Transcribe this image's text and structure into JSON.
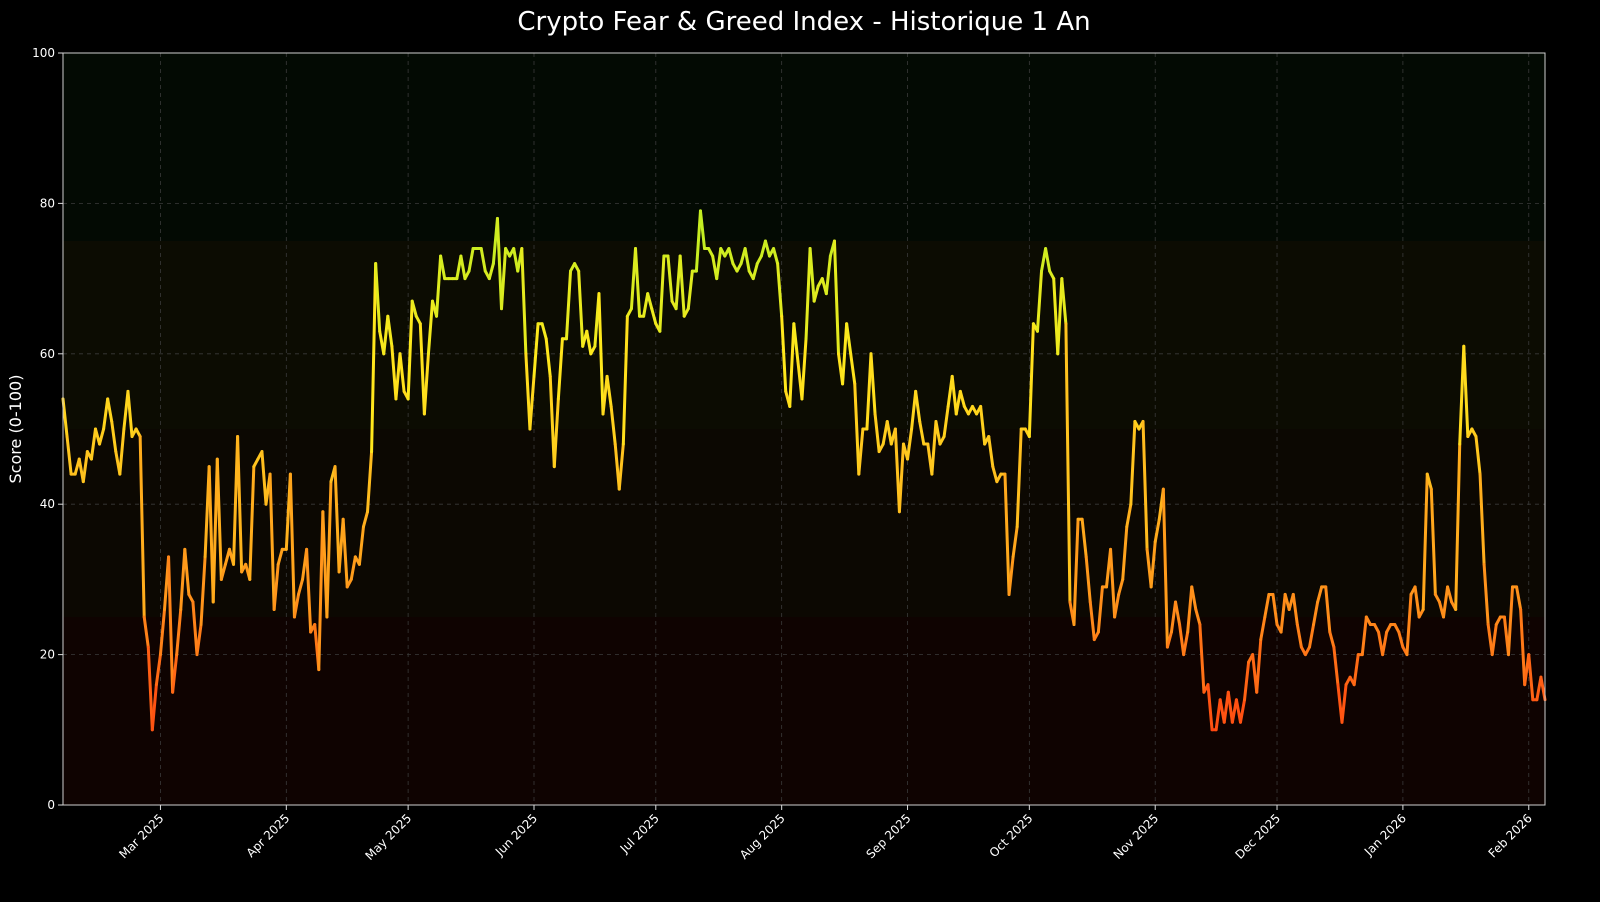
{
  "chart_data": {
    "type": "line",
    "title": "Crypto Fear & Greed Index - Historique 1 An",
    "xlabel": "",
    "ylabel": "Score (0-100)",
    "ylim": [
      0,
      100
    ],
    "xlim": [
      "2025-02-05",
      "2026-02-05"
    ],
    "yticks": [
      "0",
      "20",
      "40",
      "60",
      "80",
      "100"
    ],
    "xticks": [
      {
        "date": "2025-03-01",
        "label": "Mar 2025"
      },
      {
        "date": "2025-04-01",
        "label": "Apr 2025"
      },
      {
        "date": "2025-05-01",
        "label": "May 2025"
      },
      {
        "date": "2025-06-01",
        "label": "Jun 2025"
      },
      {
        "date": "2025-07-01",
        "label": "Jul 2025"
      },
      {
        "date": "2025-08-01",
        "label": "Aug 2025"
      },
      {
        "date": "2025-09-01",
        "label": "Sep 2025"
      },
      {
        "date": "2025-10-01",
        "label": "Oct 2025"
      },
      {
        "date": "2025-11-01",
        "label": "Nov 2025"
      },
      {
        "date": "2025-12-01",
        "label": "Dec 2025"
      },
      {
        "date": "2026-01-01",
        "label": "Jan 2026"
      },
      {
        "date": "2026-02-01",
        "label": "Feb 2026"
      }
    ],
    "grid": true,
    "background_zones": [
      {
        "from": 0,
        "to": 25,
        "color": "#0f0301"
      },
      {
        "from": 25,
        "to": 50,
        "color": "#0c0802"
      },
      {
        "from": 50,
        "to": 75,
        "color": "#0c0c02"
      },
      {
        "from": 75,
        "to": 100,
        "color": "#030a03"
      }
    ],
    "line_colormap": [
      {
        "value": 10,
        "color": "#ff4510"
      },
      {
        "value": 25,
        "color": "#ff8a1a"
      },
      {
        "value": 45,
        "color": "#ffc21e"
      },
      {
        "value": 60,
        "color": "#ffe81c"
      },
      {
        "value": 78,
        "color": "#bdee22"
      }
    ],
    "daily_values": [
      {
        "month": "2025-02",
        "first_day": 5,
        "values": [
          54,
          49,
          44,
          44,
          46,
          43,
          47,
          46,
          50,
          48,
          50,
          54,
          51,
          47,
          44,
          50,
          55,
          49,
          50,
          49,
          25,
          21,
          10,
          16
        ]
      },
      {
        "month": "2025-03",
        "first_day": 1,
        "values": [
          20,
          26,
          33,
          15,
          20,
          26,
          34,
          28,
          27,
          20,
          24,
          33,
          45,
          27,
          46,
          30,
          32,
          34,
          32,
          49,
          31,
          32,
          30,
          45,
          46,
          47,
          40,
          44,
          26,
          32,
          34
        ]
      },
      {
        "month": "2025-04",
        "first_day": 1,
        "values": [
          34,
          44,
          25,
          28,
          30,
          34,
          23,
          24,
          18,
          39,
          25,
          43,
          45,
          31,
          38,
          29,
          30,
          33,
          32,
          37,
          39,
          47,
          72,
          63,
          60,
          65,
          61,
          54,
          60,
          55
        ]
      },
      {
        "month": "2025-05",
        "first_day": 1,
        "values": [
          54,
          67,
          65,
          64,
          52,
          60,
          67,
          65,
          73,
          70,
          70,
          70,
          70,
          73,
          70,
          71,
          74,
          74,
          74,
          71,
          70,
          72,
          78,
          66,
          74,
          73,
          74,
          71,
          74,
          60,
          50
        ]
      },
      {
        "month": "2025-06",
        "first_day": 1,
        "values": [
          57,
          64,
          64,
          62,
          57,
          45,
          54,
          62,
          62,
          71,
          72,
          71,
          61,
          63,
          60,
          61,
          68,
          52,
          57,
          53,
          48,
          42,
          48,
          65,
          66,
          74,
          65,
          65,
          68,
          66
        ]
      },
      {
        "month": "2025-07",
        "first_day": 1,
        "values": [
          64,
          63,
          73,
          73,
          67,
          66,
          73,
          65,
          66,
          71,
          71,
          79,
          74,
          74,
          73,
          70,
          74,
          73,
          74,
          72,
          71,
          72,
          74,
          71,
          70,
          72,
          73,
          75,
          73,
          74,
          72
        ]
      },
      {
        "month": "2025-08",
        "first_day": 1,
        "values": [
          65,
          55,
          53,
          64,
          59,
          54,
          62,
          74,
          67,
          69,
          70,
          68,
          73,
          75,
          60,
          56,
          64,
          60,
          56,
          44,
          50,
          50,
          60,
          52,
          47,
          48,
          51,
          48,
          50,
          39,
          48
        ]
      },
      {
        "month": "2025-09",
        "first_day": 1,
        "values": [
          46,
          50,
          55,
          51,
          48,
          48,
          44,
          51,
          48,
          49,
          53,
          57,
          52,
          55,
          53,
          52,
          53,
          52,
          53,
          48,
          49,
          45,
          43,
          44,
          44,
          28,
          33,
          37,
          50,
          50
        ]
      },
      {
        "month": "2025-10",
        "first_day": 1,
        "values": [
          49,
          64,
          63,
          71,
          74,
          71,
          70,
          60,
          70,
          64,
          27,
          24,
          38,
          38,
          33,
          27,
          22,
          23,
          29,
          29,
          34,
          25,
          28,
          30,
          37,
          40,
          51,
          50,
          51,
          34,
          29
        ]
      },
      {
        "month": "2025-11",
        "first_day": 1,
        "values": [
          35,
          38,
          42,
          21,
          23,
          27,
          24,
          20,
          23,
          29,
          26,
          24,
          15,
          16,
          10,
          10,
          14,
          11,
          15,
          11,
          14,
          11,
          14,
          19,
          20,
          15,
          22,
          25,
          28,
          28
        ]
      },
      {
        "month": "2025-12",
        "first_day": 1,
        "values": [
          24,
          23,
          28,
          26,
          28,
          24,
          21,
          20,
          21,
          24,
          27,
          29,
          29,
          23,
          21,
          16,
          11,
          16,
          17,
          16,
          20,
          20,
          25,
          24,
          24,
          23,
          20,
          23,
          24,
          24,
          23
        ]
      },
      {
        "month": "2026-01",
        "first_day": 1,
        "values": [
          21,
          20,
          28,
          29,
          25,
          26,
          44,
          42,
          28,
          27,
          25,
          29,
          27,
          26,
          48,
          61,
          49,
          50,
          49,
          44,
          32,
          24,
          20,
          24,
          25,
          25,
          20,
          29,
          29,
          26,
          16
        ]
      },
      {
        "month": "2026-02",
        "first_day": 1,
        "values": [
          20,
          14,
          14,
          17,
          14
        ]
      }
    ]
  }
}
